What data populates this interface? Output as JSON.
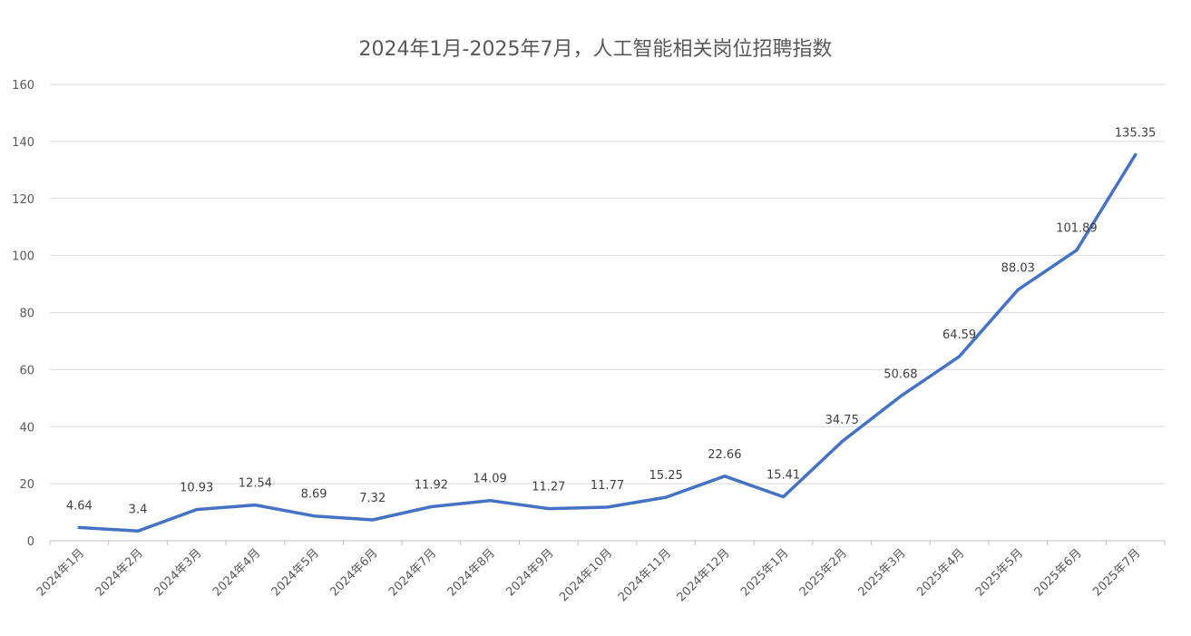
{
  "chart_data": {
    "type": "line",
    "title": "2024年1月-2025年7月，人工智能相关岗位招聘指数",
    "categories": [
      "2024年1月",
      "2024年2月",
      "2024年3月",
      "2024年4月",
      "2024年5月",
      "2024年6月",
      "2024年7月",
      "2024年8月",
      "2024年9月",
      "2024年10月",
      "2024年11月",
      "2024年12月",
      "2025年1月",
      "2025年2月",
      "2025年3月",
      "2025年4月",
      "2025年5月",
      "2025年6月",
      "2025年7月"
    ],
    "values": [
      4.64,
      3.4,
      10.93,
      12.54,
      8.69,
      7.32,
      11.92,
      14.09,
      11.27,
      11.77,
      15.25,
      22.66,
      15.41,
      34.75,
      50.68,
      64.59,
      88.03,
      101.89,
      135.35
    ],
    "data_labels": [
      "4.64",
      "3.4",
      "10.93",
      "12.54",
      "8.69",
      "7.32",
      "11.92",
      "14.09",
      "11.27",
      "11.77",
      "15.25",
      "22.66",
      "15.41",
      "34.75",
      "50.68",
      "64.59",
      "88.03",
      "101.89",
      "135.35"
    ],
    "ylim": [
      0,
      160
    ],
    "yticks": [
      0,
      20,
      40,
      60,
      80,
      100,
      120,
      140,
      160
    ],
    "grid": true,
    "legend": "none",
    "line_color": "#4472c4"
  }
}
